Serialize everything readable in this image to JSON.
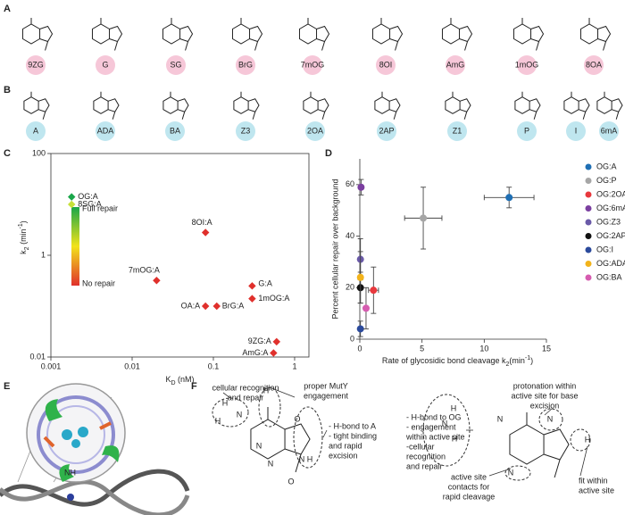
{
  "panel_labels": [
    "A",
    "B",
    "C",
    "D",
    "E",
    "F"
  ],
  "row_a": {
    "labels": [
      "9ZG",
      "G",
      "SG",
      "BrG",
      "7mOG",
      "8OI",
      "AmG",
      "1mOG",
      "8OA"
    ]
  },
  "row_b": {
    "labels": [
      "A",
      "ADA",
      "BA",
      "Z3",
      "2OA",
      "2AP",
      "Z1",
      "P",
      "I",
      "6mA"
    ]
  },
  "chart_c": {
    "type": "scatter",
    "xlabel": [
      "K",
      "D",
      " (nM)"
    ],
    "ylabel": [
      "k",
      "2",
      " (min",
      "-1",
      ")"
    ],
    "xscale": "log",
    "yscale": "log",
    "xlim": [
      0.001,
      1.5
    ],
    "ylim": [
      0.01,
      100
    ],
    "xticks": [
      0.001,
      0.01,
      0.1,
      1
    ],
    "yticks": [
      0.01,
      1,
      100
    ],
    "colorbar": {
      "top": "Full repair",
      "bottom": "No repair"
    },
    "points": [
      {
        "label": "OG:A",
        "x": 0.0018,
        "y": 14,
        "color": "#1aa64a"
      },
      {
        "label": "8SG:A",
        "x": 0.0018,
        "y": 10,
        "color": "#c6e03a"
      },
      {
        "label": "8OI:A",
        "x": 0.08,
        "y": 2.8,
        "color": "#e0302c"
      },
      {
        "label": "7mOG:A",
        "x": 0.02,
        "y": 0.32,
        "color": "#e0302c"
      },
      {
        "label": "G:A",
        "x": 0.3,
        "y": 0.25,
        "color": "#e0302c"
      },
      {
        "label": "1mOG:A",
        "x": 0.3,
        "y": 0.14,
        "color": "#e0302c"
      },
      {
        "label": "OA:A",
        "x": 0.08,
        "y": 0.1,
        "color": "#e0302c"
      },
      {
        "label": "BrG:A",
        "x": 0.11,
        "y": 0.1,
        "color": "#e0302c"
      },
      {
        "label": "9ZG:A",
        "x": 0.6,
        "y": 0.02,
        "color": "#e0302c"
      },
      {
        "label": "AmG:A",
        "x": 0.55,
        "y": 0.012,
        "color": "#e0302c"
      }
    ]
  },
  "chart_d": {
    "type": "scatter",
    "xlabel": [
      "Rate of glycosidic bond cleavage k",
      "2",
      "(min",
      "-1",
      ")"
    ],
    "ylabel": "Percent cellular repair over background",
    "xlim": [
      0,
      15
    ],
    "ylim": [
      0,
      70
    ],
    "xticks": [
      0,
      5,
      10,
      15
    ],
    "yticks": [
      0,
      20,
      40,
      60
    ],
    "series": [
      {
        "name": "OG:A",
        "color": "#1f6fb4",
        "x": 12,
        "y": 55,
        "xerr": 2,
        "yerr": 4
      },
      {
        "name": "OG:P",
        "color": "#a6a6a6",
        "x": 5.1,
        "y": 47,
        "xerr": 1.5,
        "yerr": 12
      },
      {
        "name": "OG:2OA",
        "color": "#e8383d",
        "x": 1.1,
        "y": 19,
        "xerr": 0.4,
        "yerr": 9
      },
      {
        "name": "OG:6mA",
        "color": "#7b3fa0",
        "x": 0.1,
        "y": 59,
        "yerr": 3
      },
      {
        "name": "OG:Z3",
        "color": "#6a5aa8",
        "x": 0.05,
        "y": 31,
        "yerr": 8
      },
      {
        "name": "OG:2AP",
        "color": "#111111",
        "x": 0.05,
        "y": 20,
        "yerr": 6
      },
      {
        "name": "OG:I",
        "color": "#2b4a9c",
        "x": 0.05,
        "y": 4,
        "yerr": 3
      },
      {
        "name": "OG:ADA",
        "color": "#f2b31b",
        "x": 0.05,
        "y": 24,
        "yerr": 10
      },
      {
        "name": "OG:BA",
        "color": "#d65cb0",
        "x": 0.5,
        "y": 12,
        "yerr": 8
      }
    ]
  },
  "panel_e": {
    "label": "NH"
  },
  "panel_f": {
    "left_notes": [
      [
        "cellular recognition",
        "and repair"
      ],
      [
        "proper MutY",
        "engagement"
      ],
      [
        "- H-bond to A",
        "- tight binding",
        "and rapid",
        "excision"
      ]
    ],
    "right_notes": [
      [
        "protonation within",
        "active site for base",
        "excision"
      ],
      [
        "- H-bond to OG",
        "- engagement",
        "within active site",
        "-cellular",
        "recognition",
        "and repair"
      ],
      [
        "active site",
        "contacts for",
        "rapid cleavage"
      ],
      [
        "fit within",
        "active site"
      ]
    ],
    "left_atoms": [
      "H",
      "N",
      "H",
      "H",
      "N",
      "N",
      "O",
      "N",
      "H",
      "O"
    ],
    "right_atoms": [
      "H",
      "N",
      "H",
      "N",
      "N",
      "N",
      "H"
    ]
  }
}
